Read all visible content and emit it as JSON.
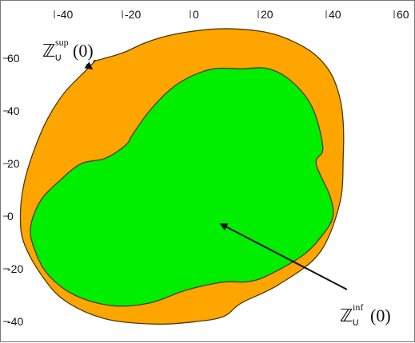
{
  "chart_data": {
    "type": "area",
    "xlim": [
      -50,
      65
    ],
    "ylim": [
      -45,
      75
    ],
    "xticks": [
      -40,
      -20,
      0,
      20,
      40,
      60
    ],
    "yticks": [
      60,
      40,
      20,
      0,
      -20,
      -40
    ],
    "xtick_labels": [
      "-40",
      "-20",
      "0",
      "20",
      "40",
      "60"
    ],
    "ytick_labels": [
      "60",
      "40",
      "20",
      "0",
      "-20",
      "-40"
    ],
    "grid": false,
    "series": [
      {
        "name": "Z_U^sup(0)",
        "color": "#FFA500",
        "x": [
          -28,
          -20,
          -13,
          -5,
          6,
          15,
          25,
          35,
          41,
          44,
          45,
          45,
          44,
          38,
          26,
          15,
          10,
          2,
          -10,
          -25,
          -37,
          -44,
          -49,
          -50,
          -49,
          -46,
          -42,
          -37,
          -31,
          -28
        ],
        "y": [
          59,
          62,
          66,
          69,
          71,
          71,
          69,
          63,
          55,
          45,
          35,
          23,
          5,
          -14,
          -26,
          -33,
          -38,
          -40,
          -41,
          -39,
          -32,
          -22,
          -10,
          0,
          12,
          25,
          37,
          47,
          55,
          59
        ]
      },
      {
        "name": "Z_U^inf(0)",
        "color": "#00EE00",
        "x": [
          15,
          23,
          30,
          36,
          39,
          37,
          41,
          42,
          39,
          33,
          22,
          16,
          10,
          -1,
          -12,
          -23,
          -34,
          -42,
          -46,
          -47,
          -44,
          -38,
          -32,
          -25,
          -19,
          -17,
          -12,
          -6,
          0,
          7
        ],
        "y": [
          56,
          56,
          51,
          41,
          26,
          20,
          8,
          0,
          -7,
          -15,
          -23,
          -25,
          -25,
          -28,
          -33,
          -34,
          -30,
          -22,
          -12,
          -4,
          6,
          14,
          20,
          22,
          27,
          31,
          40,
          48,
          53,
          56
        ]
      }
    ],
    "annotations": [
      {
        "text": "sup",
        "target_series": 0,
        "at": [
          -29,
          56
        ]
      },
      {
        "text": "inf",
        "target_series": 1,
        "at": [
          9,
          -3
        ]
      }
    ]
  }
}
